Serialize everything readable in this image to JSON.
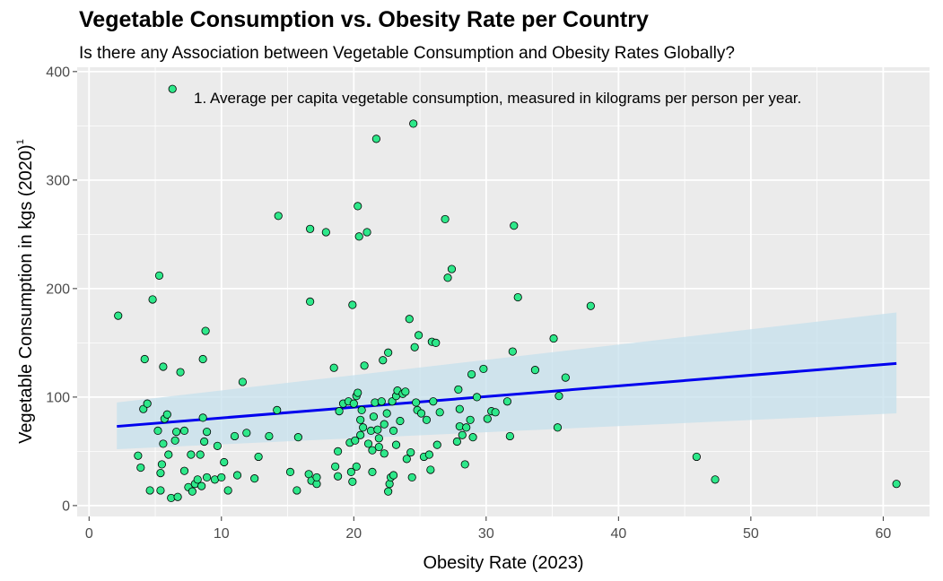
{
  "chart_data": {
    "type": "scatter",
    "title": "Vegetable Consumption vs. Obesity Rate per Country",
    "subtitle": "Is there any Association between Vegetable Consumption and Obesity Rates Globally?",
    "xlabel": "Obesity Rate (2023)",
    "ylabel": "Vegetable Consumption in kgs (2020)",
    "ylabel_superscript": "1",
    "annotation": "1. Average per capita vegetable consumption, measured in kilograms per person per year.",
    "xlim": [
      -0.9,
      63.5
    ],
    "ylim": [
      -10,
      404
    ],
    "x_ticks": [
      0,
      10,
      20,
      30,
      40,
      50,
      60
    ],
    "y_ticks": [
      0,
      100,
      200,
      300,
      400
    ],
    "grid": true,
    "colors": {
      "panel": "#ebebeb",
      "grid": "#ffffff",
      "point_fill": "#2ee88a",
      "point_stroke": "#000000",
      "trend_line": "#0000ee",
      "confidence_band": "#c6e0ec"
    },
    "trend": {
      "x": [
        2.1,
        61
      ],
      "y": [
        73,
        131
      ],
      "ci_lower": [
        52,
        85
      ],
      "ci_upper": [
        95,
        178
      ]
    },
    "points": [
      [
        2.2,
        175
      ],
      [
        3.7,
        46
      ],
      [
        3.9,
        35
      ],
      [
        4.1,
        89
      ],
      [
        4.2,
        135
      ],
      [
        4.4,
        94
      ],
      [
        4.6,
        14
      ],
      [
        4.8,
        190
      ],
      [
        5.2,
        69
      ],
      [
        5.3,
        212
      ],
      [
        5.4,
        14
      ],
      [
        5.4,
        30
      ],
      [
        5.5,
        38
      ],
      [
        5.6,
        128
      ],
      [
        5.6,
        57
      ],
      [
        5.7,
        80
      ],
      [
        5.9,
        84
      ],
      [
        6.0,
        47
      ],
      [
        6.2,
        7
      ],
      [
        6.3,
        384
      ],
      [
        6.5,
        60
      ],
      [
        6.6,
        68
      ],
      [
        6.7,
        8
      ],
      [
        6.9,
        123
      ],
      [
        7.2,
        69
      ],
      [
        7.2,
        32
      ],
      [
        7.5,
        17
      ],
      [
        7.7,
        47
      ],
      [
        7.8,
        13
      ],
      [
        8.0,
        20
      ],
      [
        8.2,
        24
      ],
      [
        8.4,
        47
      ],
      [
        8.5,
        18
      ],
      [
        8.6,
        81
      ],
      [
        8.6,
        135
      ],
      [
        8.7,
        59
      ],
      [
        8.8,
        161
      ],
      [
        8.9,
        68
      ],
      [
        8.9,
        26
      ],
      [
        9.5,
        24
      ],
      [
        9.7,
        55
      ],
      [
        10.0,
        26
      ],
      [
        10.2,
        40
      ],
      [
        10.5,
        14
      ],
      [
        11.0,
        64
      ],
      [
        11.2,
        28
      ],
      [
        11.6,
        114
      ],
      [
        11.9,
        67
      ],
      [
        12.5,
        25
      ],
      [
        12.8,
        45
      ],
      [
        13.6,
        64
      ],
      [
        14.2,
        88
      ],
      [
        14.3,
        267
      ],
      [
        15.2,
        31
      ],
      [
        15.7,
        14
      ],
      [
        15.8,
        63
      ],
      [
        16.6,
        29
      ],
      [
        16.7,
        188
      ],
      [
        16.7,
        255
      ],
      [
        16.8,
        23
      ],
      [
        17.2,
        20
      ],
      [
        17.2,
        26
      ],
      [
        17.9,
        252
      ],
      [
        18.5,
        127
      ],
      [
        18.6,
        36
      ],
      [
        18.8,
        27
      ],
      [
        18.8,
        50
      ],
      [
        18.9,
        87
      ],
      [
        19.2,
        94
      ],
      [
        19.6,
        96
      ],
      [
        19.7,
        58
      ],
      [
        19.8,
        31
      ],
      [
        19.9,
        185
      ],
      [
        19.9,
        22
      ],
      [
        20.0,
        94
      ],
      [
        20.1,
        60
      ],
      [
        20.2,
        36
      ],
      [
        20.2,
        101
      ],
      [
        20.3,
        276
      ],
      [
        20.3,
        104
      ],
      [
        20.4,
        248
      ],
      [
        20.5,
        79
      ],
      [
        20.5,
        65
      ],
      [
        20.6,
        88
      ],
      [
        20.7,
        72
      ],
      [
        20.8,
        129
      ],
      [
        21.0,
        252
      ],
      [
        21.1,
        57
      ],
      [
        21.3,
        69
      ],
      [
        21.4,
        31
      ],
      [
        21.4,
        51
      ],
      [
        21.5,
        82
      ],
      [
        21.6,
        95
      ],
      [
        21.7,
        338
      ],
      [
        21.8,
        70
      ],
      [
        21.9,
        54
      ],
      [
        21.9,
        62
      ],
      [
        22.1,
        96
      ],
      [
        22.2,
        134
      ],
      [
        22.3,
        75
      ],
      [
        22.3,
        48
      ],
      [
        22.5,
        85
      ],
      [
        22.6,
        141
      ],
      [
        22.6,
        13
      ],
      [
        22.7,
        20
      ],
      [
        22.8,
        26
      ],
      [
        22.9,
        96
      ],
      [
        23.0,
        28
      ],
      [
        23.0,
        69
      ],
      [
        23.2,
        101
      ],
      [
        23.2,
        56
      ],
      [
        23.3,
        106
      ],
      [
        23.5,
        78
      ],
      [
        23.7,
        103
      ],
      [
        23.9,
        105
      ],
      [
        24.0,
        43
      ],
      [
        24.2,
        172
      ],
      [
        24.3,
        49
      ],
      [
        24.4,
        26
      ],
      [
        24.5,
        352
      ],
      [
        24.6,
        146
      ],
      [
        24.7,
        95
      ],
      [
        24.8,
        88
      ],
      [
        24.9,
        157
      ],
      [
        25.1,
        85
      ],
      [
        25.3,
        45
      ],
      [
        25.5,
        79
      ],
      [
        25.7,
        47
      ],
      [
        25.8,
        33
      ],
      [
        25.9,
        151
      ],
      [
        26.0,
        96
      ],
      [
        26.2,
        150
      ],
      [
        26.3,
        56
      ],
      [
        26.5,
        86
      ],
      [
        26.9,
        264
      ],
      [
        27.1,
        210
      ],
      [
        27.4,
        218
      ],
      [
        27.8,
        59
      ],
      [
        27.9,
        107
      ],
      [
        28.0,
        89
      ],
      [
        28.0,
        73
      ],
      [
        28.2,
        65
      ],
      [
        28.4,
        38
      ],
      [
        28.5,
        72
      ],
      [
        28.8,
        79
      ],
      [
        28.9,
        121
      ],
      [
        29.0,
        63
      ],
      [
        29.3,
        100
      ],
      [
        29.8,
        126
      ],
      [
        30.1,
        80
      ],
      [
        30.4,
        87
      ],
      [
        30.7,
        86
      ],
      [
        31.6,
        96
      ],
      [
        31.8,
        64
      ],
      [
        32.0,
        142
      ],
      [
        32.1,
        258
      ],
      [
        32.4,
        192
      ],
      [
        33.7,
        125
      ],
      [
        35.1,
        154
      ],
      [
        35.4,
        72
      ],
      [
        35.5,
        101
      ],
      [
        36.0,
        118
      ],
      [
        37.9,
        184
      ],
      [
        45.9,
        45
      ],
      [
        47.3,
        24
      ],
      [
        61.0,
        20
      ]
    ]
  }
}
